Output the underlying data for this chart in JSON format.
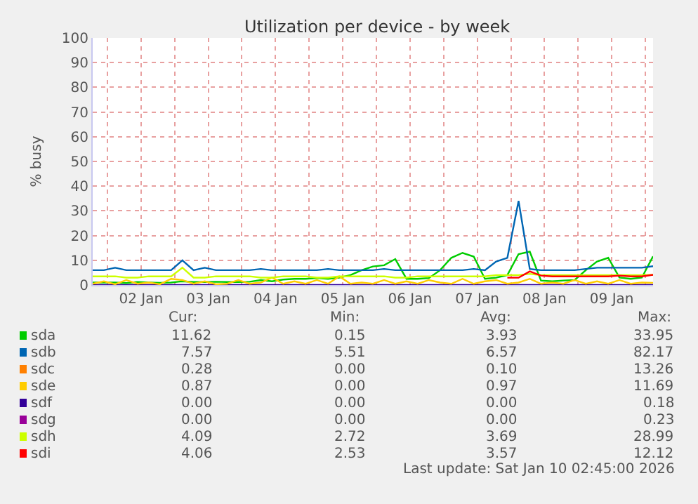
{
  "chart_data": {
    "type": "line",
    "title": "Utilization per device - by week",
    "ylabel": "% busy",
    "x": [
      "2026-01-01T18:45",
      "2026-01-01T22:45",
      "2026-01-02T02:45",
      "2026-01-02T06:45",
      "2026-01-02T10:45",
      "2026-01-02T14:45",
      "2026-01-02T18:45",
      "2026-01-02T22:45",
      "2026-01-03T02:45",
      "2026-01-03T06:45",
      "2026-01-03T10:45",
      "2026-01-03T14:45",
      "2026-01-03T18:45",
      "2026-01-03T22:45",
      "2026-01-04T02:45",
      "2026-01-04T06:45",
      "2026-01-04T10:45",
      "2026-01-04T14:45",
      "2026-01-04T18:45",
      "2026-01-04T22:45",
      "2026-01-05T02:45",
      "2026-01-05T06:45",
      "2026-01-05T10:45",
      "2026-01-05T14:45",
      "2026-01-05T18:45",
      "2026-01-05T22:45",
      "2026-01-06T02:45",
      "2026-01-06T06:45",
      "2026-01-06T10:45",
      "2026-01-06T14:45",
      "2026-01-06T18:45",
      "2026-01-06T22:45",
      "2026-01-07T02:45",
      "2026-01-07T06:45",
      "2026-01-07T10:45",
      "2026-01-07T14:45",
      "2026-01-07T18:45",
      "2026-01-07T22:45",
      "2026-01-08T02:45",
      "2026-01-08T06:45",
      "2026-01-08T10:45",
      "2026-01-08T14:45",
      "2026-01-08T18:45",
      "2026-01-08T22:45",
      "2026-01-09T02:45",
      "2026-01-09T06:45",
      "2026-01-09T10:45",
      "2026-01-09T14:45",
      "2026-01-09T18:45",
      "2026-01-09T22:45",
      "2026-01-10T02:45"
    ],
    "series": [
      {
        "name": "sda",
        "color": "#00cc00",
        "values": [
          1.0,
          1.0,
          1.0,
          0.8,
          1.2,
          1.0,
          0.9,
          1.0,
          1.5,
          1.2,
          1.2,
          1.3,
          1.2,
          1.2,
          1.3,
          2.0,
          1.5,
          2.2,
          2.5,
          2.5,
          2.8,
          2.5,
          3.0,
          4.0,
          6.0,
          7.5,
          8.0,
          10.5,
          2.5,
          2.5,
          2.8,
          6.0,
          11.0,
          13.0,
          11.5,
          2.5,
          3.0,
          4.0,
          12.5,
          13.5,
          1.8,
          1.5,
          1.8,
          2.0,
          6.0,
          9.5,
          11.0,
          3.0,
          2.5,
          3.0,
          11.6
        ]
      },
      {
        "name": "sdb",
        "color": "#0066b3",
        "values": [
          6.0,
          6.0,
          7.0,
          6.0,
          6.0,
          6.0,
          6.0,
          6.0,
          10.0,
          6.0,
          7.0,
          6.0,
          6.0,
          6.0,
          6.0,
          6.5,
          6.0,
          6.0,
          6.0,
          6.0,
          6.0,
          6.5,
          6.0,
          6.0,
          6.0,
          6.0,
          6.5,
          6.0,
          6.0,
          6.0,
          6.0,
          6.0,
          6.0,
          6.0,
          6.5,
          6.0,
          9.5,
          11.0,
          34.0,
          6.5,
          6.0,
          6.0,
          6.0,
          6.0,
          6.5,
          7.0,
          7.0,
          7.0,
          7.0,
          7.0,
          7.6
        ]
      },
      {
        "name": "sdc",
        "color": "#ff8000",
        "values": [
          null,
          null,
          null,
          null,
          null,
          null,
          null,
          null,
          null,
          null,
          null,
          null,
          null,
          null,
          null,
          null,
          null,
          null,
          null,
          null,
          null,
          null,
          null,
          null,
          null,
          null,
          null,
          null,
          null,
          null,
          null,
          null,
          null,
          null,
          null,
          null,
          null,
          null,
          null,
          null,
          null,
          null,
          null,
          null,
          null,
          null,
          null,
          null,
          null,
          null,
          null
        ]
      },
      {
        "name": "sde",
        "color": "#ffcc00",
        "values": [
          0.5,
          1.5,
          0.3,
          2.0,
          0.5,
          1.0,
          0.3,
          2.5,
          2.0,
          0.5,
          1.5,
          0.3,
          0.5,
          2.0,
          0.5,
          1.0,
          3.0,
          0.5,
          1.5,
          0.5,
          2.0,
          0.5,
          3.5,
          0.5,
          1.0,
          0.5,
          2.0,
          0.5,
          1.5,
          0.5,
          2.0,
          1.0,
          0.5,
          2.5,
          0.5,
          1.5,
          2.0,
          0.5,
          1.0,
          2.5,
          0.5,
          1.0,
          0.5,
          2.0,
          0.5,
          1.5,
          0.5,
          2.0,
          0.5,
          1.0,
          0.9
        ]
      },
      {
        "name": "sdf",
        "color": "#330099",
        "values": [
          0,
          0,
          0,
          0,
          0,
          0,
          0,
          0,
          0,
          0,
          0,
          0,
          0,
          0,
          0,
          0,
          0,
          0,
          0,
          0,
          0,
          0,
          0,
          0,
          0,
          0,
          0,
          0,
          0,
          0,
          0,
          0,
          0,
          0,
          0,
          0,
          0,
          0,
          0,
          0,
          0,
          0,
          0,
          0,
          0,
          0,
          0,
          0,
          0,
          0,
          0
        ]
      },
      {
        "name": "sdg",
        "color": "#990099",
        "values": [
          null,
          null,
          null,
          null,
          null,
          null,
          null,
          null,
          null,
          null,
          null,
          null,
          null,
          null,
          null,
          null,
          null,
          null,
          null,
          null,
          null,
          null,
          null,
          null,
          null,
          null,
          null,
          null,
          null,
          null,
          null,
          null,
          null,
          null,
          null,
          null,
          null,
          null,
          null,
          null,
          null,
          null,
          null,
          null,
          null,
          null,
          null,
          null,
          null,
          null,
          null
        ]
      },
      {
        "name": "sdh",
        "color": "#ccff00",
        "values": [
          3.5,
          3.5,
          3.5,
          3.0,
          3.0,
          3.5,
          3.5,
          3.5,
          7.0,
          3.0,
          3.0,
          3.5,
          3.5,
          3.5,
          3.5,
          3.0,
          3.0,
          3.5,
          3.5,
          3.5,
          3.0,
          3.0,
          3.5,
          3.5,
          3.5,
          3.5,
          3.5,
          3.0,
          3.0,
          3.5,
          3.5,
          3.5,
          3.5,
          3.5,
          3.5,
          3.5,
          4.0,
          4.0,
          4.0,
          4.5,
          4.0,
          4.0,
          4.0,
          4.0,
          4.0,
          4.0,
          4.0,
          4.0,
          4.0,
          4.0,
          4.1
        ]
      },
      {
        "name": "sdi",
        "color": "#ff0000",
        "values": [
          null,
          null,
          null,
          null,
          null,
          null,
          null,
          null,
          null,
          null,
          null,
          null,
          null,
          null,
          null,
          null,
          null,
          null,
          null,
          null,
          null,
          null,
          null,
          null,
          null,
          null,
          null,
          null,
          null,
          null,
          null,
          null,
          null,
          null,
          null,
          null,
          null,
          3.0,
          3.0,
          5.5,
          3.8,
          3.5,
          3.5,
          3.5,
          3.5,
          3.5,
          3.5,
          3.8,
          3.5,
          3.5,
          4.1
        ]
      }
    ],
    "xlim": [
      "2026-01-01T18:45",
      "2026-01-10T02:45"
    ],
    "xticks": [
      {
        "value": "2026-01-02T00:00",
        "label": null
      },
      {
        "value": "2026-01-02T12:00",
        "label": "02 Jan"
      },
      {
        "value": "2026-01-03T00:00",
        "label": null
      },
      {
        "value": "2026-01-03T12:00",
        "label": "03 Jan"
      },
      {
        "value": "2026-01-04T00:00",
        "label": null
      },
      {
        "value": "2026-01-04T12:00",
        "label": "04 Jan"
      },
      {
        "value": "2026-01-05T00:00",
        "label": null
      },
      {
        "value": "2026-01-05T12:00",
        "label": "05 Jan"
      },
      {
        "value": "2026-01-06T00:00",
        "label": null
      },
      {
        "value": "2026-01-06T12:00",
        "label": "06 Jan"
      },
      {
        "value": "2026-01-07T00:00",
        "label": null
      },
      {
        "value": "2026-01-07T12:00",
        "label": "07 Jan"
      },
      {
        "value": "2026-01-08T00:00",
        "label": null
      },
      {
        "value": "2026-01-08T12:00",
        "label": "08 Jan"
      },
      {
        "value": "2026-01-09T00:00",
        "label": null
      },
      {
        "value": "2026-01-09T12:00",
        "label": "09 Jan"
      },
      {
        "value": "2026-01-10T00:00",
        "label": null
      }
    ],
    "ylim": [
      0,
      100
    ],
    "yticks": [
      0,
      10,
      20,
      30,
      40,
      50,
      60,
      70,
      80,
      90,
      100
    ],
    "grid": true,
    "legend": "bottom left",
    "marker": "none",
    "line_style": "solid",
    "annotations": [
      "Cur:",
      "Min:",
      "Avg:",
      "Max:",
      "11.62",
      "0.15",
      "3.93",
      "33.95",
      "7.57",
      "5.51",
      "6.57",
      "82.17",
      "0.28",
      "0.00",
      "0.10",
      "13.26",
      "0.87",
      "0.00",
      "0.97",
      "11.69",
      "0.00",
      "0.00",
      "0.00",
      "0.18",
      "0.00",
      "0.00",
      "0.00",
      "0.23",
      "4.09",
      "2.72",
      "3.69",
      "28.99",
      "4.06",
      "2.53",
      "3.57",
      "12.12",
      "Last update: Sat Jan 10 02:45:00 2026"
    ]
  }
}
